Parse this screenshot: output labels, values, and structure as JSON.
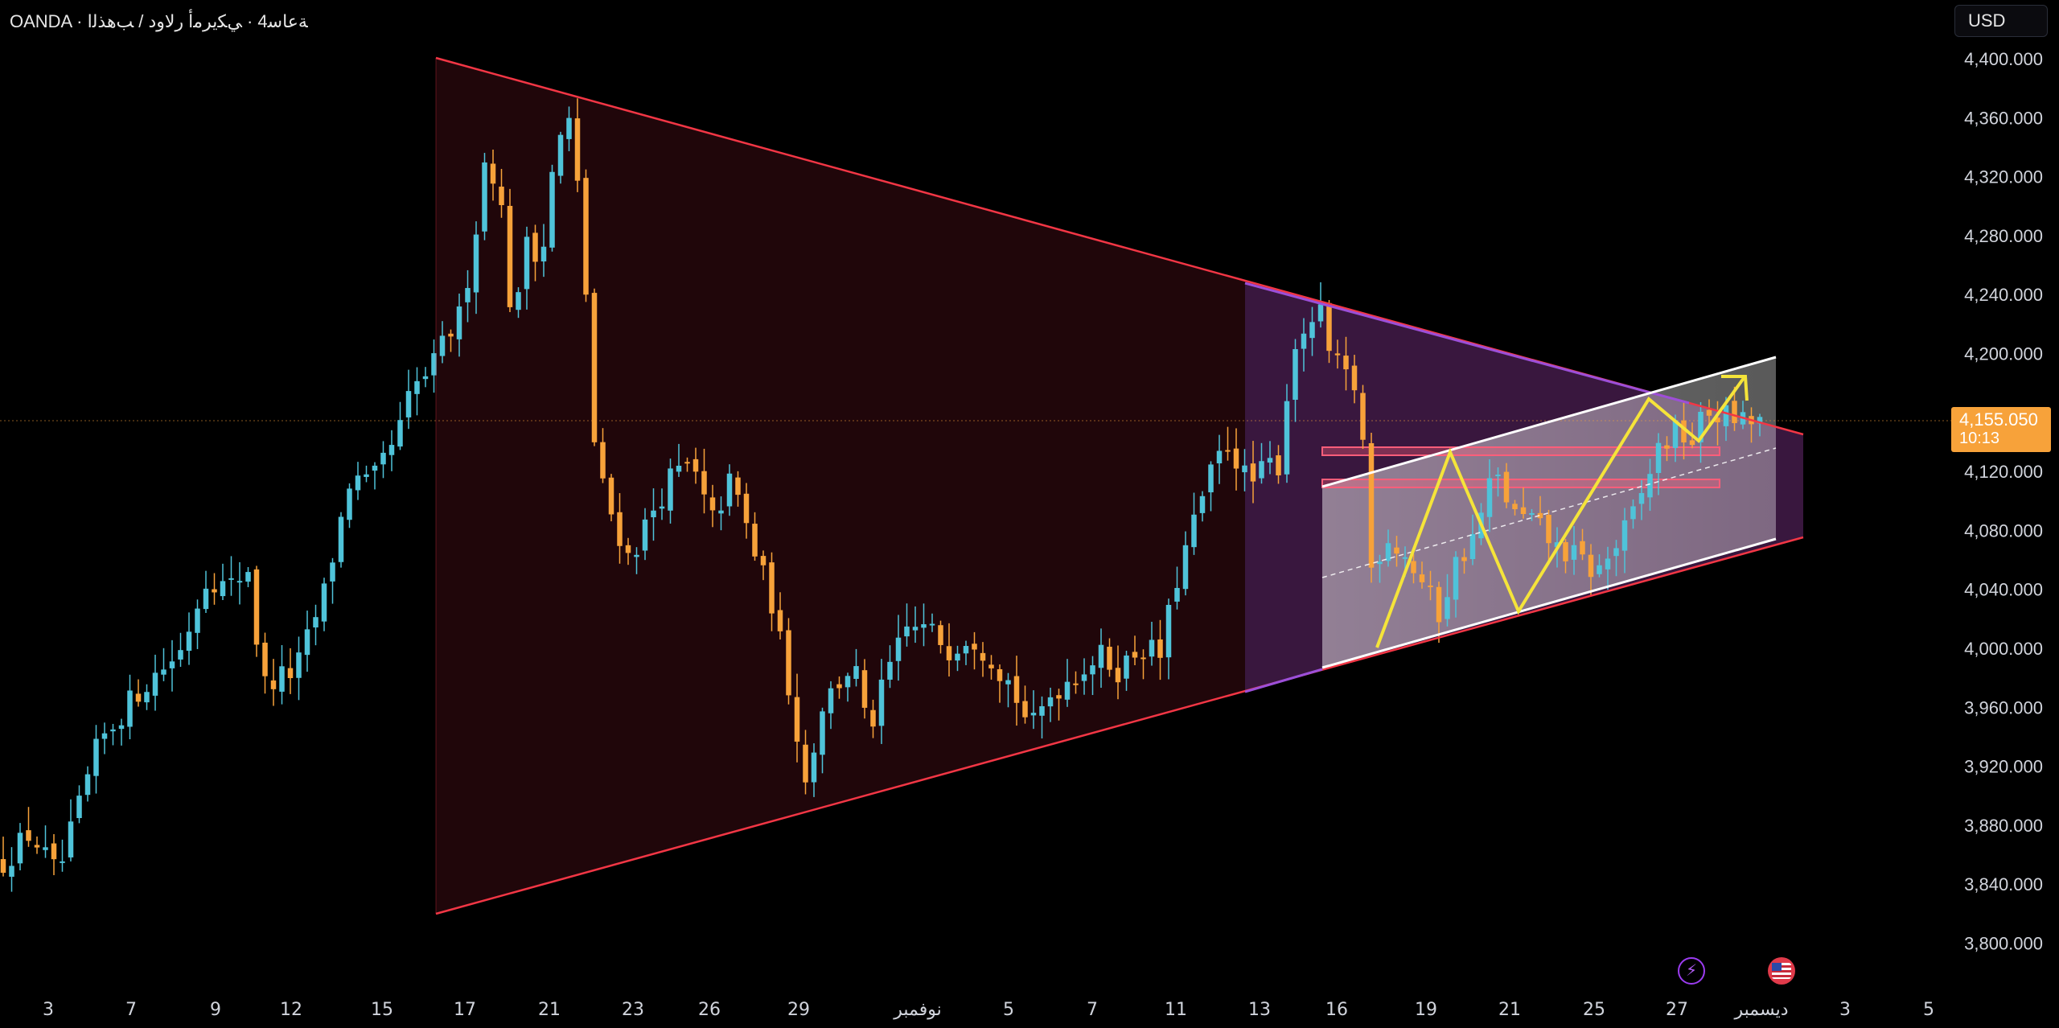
{
  "header": {
    "title": "OANDA · ﺔﻋﺎﺳ4 · ﻲﻜﻳﺮﻣﺃ ﺭﻻﻭﺩ / ﺐﻫﺬﻟﺍ"
  },
  "currency_button": {
    "label": "USD"
  },
  "last_price": {
    "value": "4,155.050",
    "countdown": "10:13"
  },
  "colors": {
    "background": "#000000",
    "candle_up": "#4fc3d9",
    "candle_down": "#f7a23a",
    "triangle_line": "#f23645",
    "inner_triangle_line": "#9c4fd8",
    "channel_line": "#ffffff",
    "zigzag": "#f5e43a",
    "zone": "#ff5e7a"
  },
  "icons": [
    "lightning-icon",
    "us-flag-icon"
  ],
  "chart_data": {
    "type": "candlestick",
    "instrument": "OANDA XAU/USD 4h",
    "ylim": [
      3780,
      4420
    ],
    "yticks": [
      "4,400.000",
      "4,360.000",
      "4,320.000",
      "4,280.000",
      "4,240.000",
      "4,200.000",
      "4,120.000",
      "4,080.000",
      "4,040.000",
      "4,000.000",
      "3,960.000",
      "3,920.000",
      "3,880.000",
      "3,840.000",
      "3,800.000"
    ],
    "xticks": [
      "3",
      "7",
      "9",
      "12",
      "15",
      "17",
      "21",
      "23",
      "26",
      "29",
      "نوفمبر",
      "5",
      "7",
      "11",
      "13",
      "16",
      "19",
      "21",
      "25",
      "27",
      "ديسمبر",
      "3",
      "5"
    ],
    "grid": false,
    "candle_keyframes": [
      [
        0,
        3855
      ],
      [
        20,
        3875
      ],
      [
        40,
        3845
      ],
      [
        70,
        3935
      ],
      [
        100,
        3972
      ],
      [
        130,
        3998
      ],
      [
        150,
        4050
      ],
      [
        165,
        4040
      ],
      [
        180,
        4055
      ],
      [
        190,
        3975
      ],
      [
        215,
        3985
      ],
      [
        235,
        4035
      ],
      [
        255,
        4115
      ],
      [
        270,
        4110
      ],
      [
        290,
        4145
      ],
      [
        300,
        4175
      ],
      [
        315,
        4190
      ],
      [
        325,
        4210
      ],
      [
        335,
        4225
      ],
      [
        345,
        4270
      ],
      [
        355,
        4340
      ],
      [
        365,
        4305
      ],
      [
        375,
        4210
      ],
      [
        385,
        4285
      ],
      [
        395,
        4260
      ],
      [
        405,
        4335
      ],
      [
        415,
        4360
      ],
      [
        425,
        4290
      ],
      [
        435,
        4125
      ],
      [
        445,
        4095
      ],
      [
        460,
        4060
      ],
      [
        475,
        4090
      ],
      [
        490,
        4115
      ],
      [
        505,
        4125
      ],
      [
        520,
        4085
      ],
      [
        535,
        4115
      ],
      [
        550,
        4070
      ],
      [
        565,
        4030
      ],
      [
        580,
        3960
      ],
      [
        590,
        3905
      ],
      [
        600,
        3960
      ],
      [
        612,
        3975
      ],
      [
        625,
        3990
      ],
      [
        635,
        3940
      ],
      [
        650,
        3985
      ],
      [
        665,
        4015
      ],
      [
        680,
        4012
      ],
      [
        695,
        4000
      ],
      [
        710,
        4010
      ],
      [
        725,
        3995
      ],
      [
        740,
        3975
      ],
      [
        755,
        3945
      ],
      [
        770,
        3970
      ],
      [
        790,
        3985
      ],
      [
        805,
        3995
      ],
      [
        820,
        3985
      ],
      [
        835,
        4002
      ],
      [
        850,
        3995
      ],
      [
        860,
        4040
      ],
      [
        870,
        4072
      ],
      [
        880,
        4100
      ],
      [
        890,
        4125
      ],
      [
        900,
        4140
      ],
      [
        915,
        4110
      ],
      [
        930,
        4125
      ],
      [
        940,
        4125
      ],
      [
        945,
        4210
      ],
      [
        955,
        4205
      ],
      [
        965,
        4235
      ],
      [
        975,
        4195
      ],
      [
        985,
        4185
      ],
      [
        995,
        4175
      ],
      [
        1000,
        4125
      ],
      [
        1005,
        4050
      ],
      [
        1015,
        4078
      ],
      [
        1030,
        4062
      ],
      [
        1045,
        4040
      ],
      [
        1055,
        4022
      ],
      [
        1065,
        4055
      ],
      [
        1080,
        4075
      ],
      [
        1095,
        4120
      ],
      [
        1110,
        4090
      ],
      [
        1125,
        4085
      ],
      [
        1140,
        4068
      ],
      [
        1155,
        4062
      ],
      [
        1170,
        4050
      ],
      [
        1185,
        4070
      ],
      [
        1200,
        4095
      ],
      [
        1215,
        4135
      ],
      [
        1230,
        4148
      ],
      [
        1240,
        4140
      ],
      [
        1250,
        4160
      ],
      [
        1265,
        4158
      ],
      [
        1280,
        4152
      ],
      [
        1290,
        4155
      ]
    ],
    "drawings": [
      {
        "type": "symmetrical-triangle",
        "from": "2025-10-16",
        "to": "2025-12-01",
        "upper": [
          4400,
          4147
        ],
        "lower": [
          3822,
          4072
        ]
      },
      {
        "type": "triangle",
        "from": "2025-11-12",
        "to": "2025-12-01",
        "upper": [
          4248,
          4147
        ],
        "lower": [
          3968,
          4072
        ]
      },
      {
        "type": "ascending-channel",
        "from": "2025-11-14",
        "to": "2025-11-29",
        "upper": [
          4107,
          4200
        ],
        "lower": [
          3986,
          4074
        ]
      },
      {
        "type": "zone",
        "range": [
          4134,
          4140
        ]
      },
      {
        "type": "zone",
        "range": [
          4108,
          4114
        ]
      },
      {
        "type": "zigzag-projection",
        "points": [
          [
            1050,
            3998
          ],
          [
            1103,
            4132
          ],
          [
            1157,
            4024
          ],
          [
            1256,
            4168
          ],
          [
            1294,
            4137
          ],
          [
            1327,
            4185
          ]
        ]
      }
    ]
  }
}
